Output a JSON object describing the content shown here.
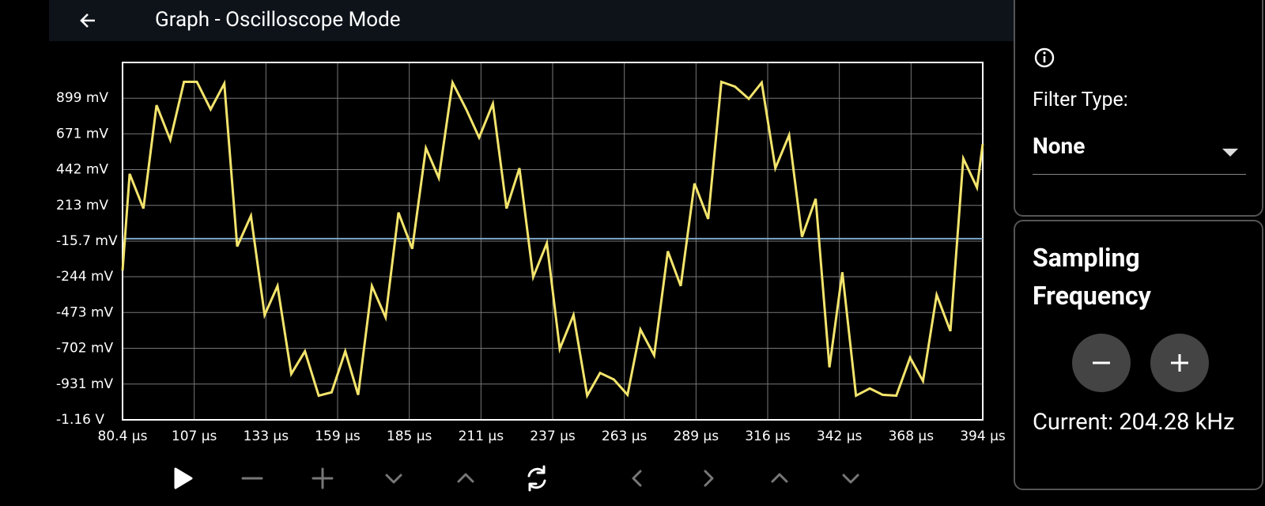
{
  "header": {
    "title": "Graph - Oscilloscope Mode"
  },
  "chart_data": {
    "type": "line",
    "x": [
      80.4,
      83.0,
      88.0,
      92.8,
      97.8,
      102.8,
      107.5,
      112.5,
      117.5,
      122.2,
      127.2,
      132.2,
      136.9,
      141.9,
      146.9,
      151.9,
      156.6,
      161.6,
      166.3,
      171.3,
      176.3,
      181.0,
      186.0,
      191.0,
      195.7,
      200.7,
      205.7,
      210.4,
      215.4,
      220.4,
      225.1,
      230.1,
      235.1,
      239.8,
      244.8,
      249.8,
      254.5,
      259.5,
      264.5,
      269.2,
      274.2,
      279.2,
      283.9,
      288.9,
      293.9,
      298.7,
      303.7,
      308.7,
      313.4,
      318.4,
      323.4,
      328.1,
      333.1,
      338.1,
      342.8,
      347.8,
      352.8,
      357.5,
      362.5,
      367.5,
      372.2,
      377.2,
      382.2,
      386.9,
      391.9,
      394.0
    ],
    "values": [
      -205,
      415,
      193,
      854,
      632,
      1004,
      1004,
      828,
      993,
      -50,
      146,
      -489,
      -303,
      -866,
      -721,
      -1005,
      -984,
      -721,
      -1000,
      -303,
      -504,
      167,
      -65,
      580,
      389,
      999,
      828,
      647,
      864,
      193,
      451,
      -246,
      -29,
      -706,
      -489,
      -1005,
      -860,
      -902,
      -1000,
      -582,
      -747,
      -81,
      -303,
      353,
      126,
      1004,
      973,
      895,
      999,
      451,
      663,
      12,
      255,
      -824,
      -215,
      -1005,
      -959,
      -1000,
      -1005,
      -762,
      -912,
      -360,
      -592,
      513,
      327,
      606
    ],
    "color": "#f3e46c",
    "reference_line": 0,
    "reference_color": "#7fa9c9",
    "xlim": [
      80.4,
      394.0
    ],
    "xticks": [
      {
        "value": 80.4,
        "label": "80.4 µs"
      },
      {
        "value": 106.53,
        "label": "107 µs"
      },
      {
        "value": 132.67,
        "label": "133 µs"
      },
      {
        "value": 158.8,
        "label": "159 µs"
      },
      {
        "value": 184.93,
        "label": "185 µs"
      },
      {
        "value": 211.07,
        "label": "211 µs"
      },
      {
        "value": 237.2,
        "label": "237 µs"
      },
      {
        "value": 263.33,
        "label": "263 µs"
      },
      {
        "value": 289.47,
        "label": "289 µs"
      },
      {
        "value": 315.6,
        "label": "316 µs"
      },
      {
        "value": 341.73,
        "label": "342 µs"
      },
      {
        "value": 367.87,
        "label": "368 µs"
      },
      {
        "value": 394.0,
        "label": "394 µs"
      }
    ],
    "ylim": [
      -1160,
      1128
    ],
    "yticks": [
      {
        "value": 899,
        "label": "899 mV"
      },
      {
        "value": 671,
        "label": "671 mV"
      },
      {
        "value": 442,
        "label": "442 mV"
      },
      {
        "value": 213,
        "label": "213 mV"
      },
      {
        "value": -15.7,
        "label": "-15.7 mV"
      },
      {
        "value": -244,
        "label": "-244 mV"
      },
      {
        "value": -473,
        "label": "-473 mV"
      },
      {
        "value": -702,
        "label": "-702 mV"
      },
      {
        "value": -931,
        "label": "-931 mV"
      },
      {
        "value": -1160,
        "label": "-1.16 V"
      }
    ],
    "grid": true
  },
  "panel": {
    "filter_label": "Filter Type:",
    "filter_value": "None",
    "sampling_title": "Sampling Frequency",
    "current_frequency": "Current: 204.28 kHz"
  }
}
